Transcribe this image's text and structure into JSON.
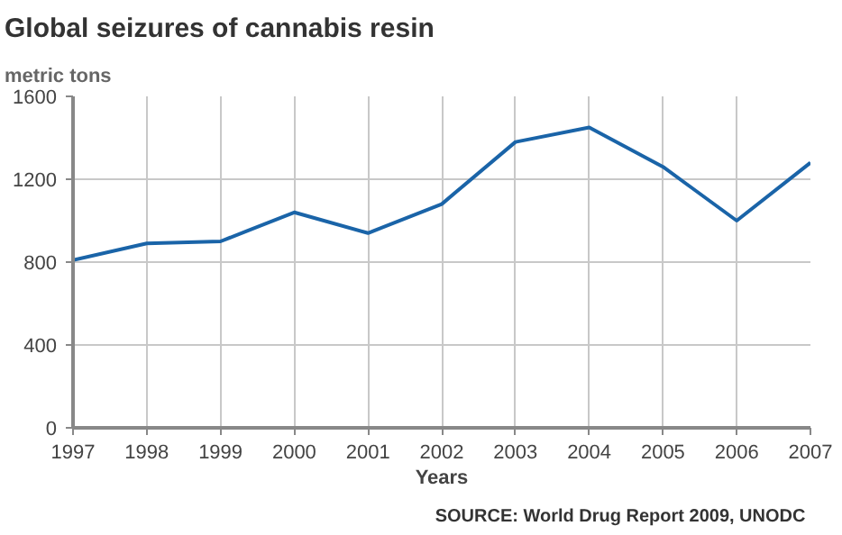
{
  "chart_data": {
    "type": "line",
    "title": "Global seizures of cannabis resin",
    "ylabel": "metric tons",
    "xlabel": "Years",
    "annotations": [
      "SOURCE: World Drug Report  2009, UNODC"
    ],
    "x": [
      1997,
      1998,
      1999,
      2000,
      2001,
      2002,
      2003,
      2004,
      2005,
      2006,
      2007
    ],
    "series": [
      {
        "color": "#1a64a8",
        "values": [
          810,
          890,
          900,
          1040,
          940,
          1080,
          1380,
          1450,
          1260,
          1000,
          1280
        ]
      }
    ],
    "xlim": [
      1997,
      2007
    ],
    "xticks": [
      1997,
      1998,
      1999,
      2000,
      2001,
      2002,
      2003,
      2004,
      2005,
      2006,
      2007
    ],
    "ylim": [
      0,
      1600
    ],
    "yticks": [
      0,
      400,
      800,
      1200,
      1600
    ],
    "grid": true,
    "marker": "none",
    "line_style": "solid"
  }
}
